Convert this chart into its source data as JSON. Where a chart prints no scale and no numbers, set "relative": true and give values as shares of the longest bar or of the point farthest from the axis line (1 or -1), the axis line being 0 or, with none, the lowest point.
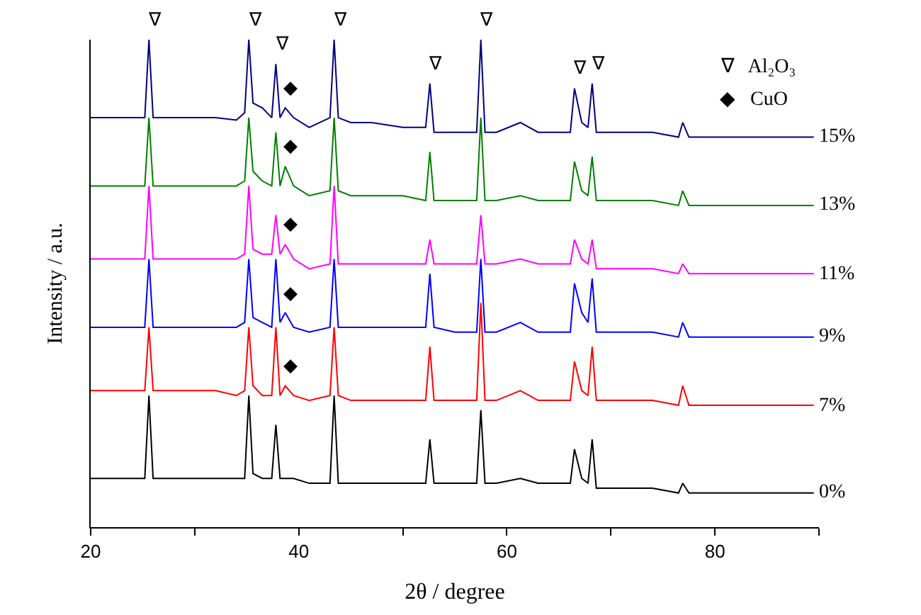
{
  "chart_data": {
    "type": "line",
    "relative": true,
    "xlabel": "2θ / degree",
    "ylabel": "Intensity / a.u.",
    "xlim": [
      20,
      90
    ],
    "xticks": [
      20,
      {
        "value": 30,
        "label": null
      },
      40,
      {
        "value": 50,
        "label": null
      },
      60,
      {
        "value": 70,
        "label": null
      },
      80,
      {
        "value": 90,
        "label": null
      }
    ],
    "x": [
      20,
      22,
      24,
      25.2,
      25.6,
      26.0,
      28,
      30,
      32,
      34,
      34.8,
      35.2,
      35.6,
      36.5,
      37.4,
      37.8,
      38.2,
      38.7,
      39.5,
      41,
      43.0,
      43.4,
      43.8,
      45,
      47,
      50,
      52.2,
      52.6,
      53.0,
      55,
      57.1,
      57.5,
      57.9,
      59,
      61.3,
      63,
      66.1,
      66.5,
      67.2,
      67.8,
      68.2,
      68.6,
      70,
      72,
      74,
      76.5,
      76.9,
      77.5,
      80,
      83,
      86,
      89.5
    ],
    "series": [
      {
        "name": "0%",
        "color": "#000000",
        "values": [
          0.1,
          0.1,
          0.1,
          0.1,
          0.27,
          0.1,
          0.1,
          0.1,
          0.1,
          0.1,
          0.1,
          0.27,
          0.11,
          0.1,
          0.1,
          0.21,
          0.1,
          0.1,
          0.1,
          0.09,
          0.09,
          0.27,
          0.09,
          0.09,
          0.09,
          0.09,
          0.09,
          0.18,
          0.09,
          0.09,
          0.09,
          0.24,
          0.09,
          0.09,
          0.1,
          0.09,
          0.09,
          0.16,
          0.1,
          0.09,
          0.18,
          0.08,
          0.08,
          0.08,
          0.08,
          0.07,
          0.09,
          0.07,
          0.07,
          0.07,
          0.07,
          0.07
        ]
      },
      {
        "name": "7%",
        "color": "#ff0000",
        "values": [
          0.28,
          0.28,
          0.28,
          0.28,
          0.41,
          0.28,
          0.28,
          0.28,
          0.28,
          0.27,
          0.28,
          0.41,
          0.29,
          0.27,
          0.27,
          0.41,
          0.27,
          0.29,
          0.27,
          0.26,
          0.27,
          0.41,
          0.27,
          0.26,
          0.26,
          0.26,
          0.26,
          0.37,
          0.26,
          0.26,
          0.26,
          0.46,
          0.26,
          0.26,
          0.28,
          0.26,
          0.26,
          0.34,
          0.28,
          0.27,
          0.37,
          0.26,
          0.26,
          0.26,
          0.26,
          0.25,
          0.29,
          0.25,
          0.25,
          0.25,
          0.25,
          0.25
        ]
      },
      {
        "name": "9%",
        "color": "#0000ff",
        "values": [
          0.41,
          0.41,
          0.41,
          0.41,
          0.55,
          0.41,
          0.41,
          0.41,
          0.41,
          0.41,
          0.42,
          0.55,
          0.43,
          0.42,
          0.41,
          0.55,
          0.42,
          0.44,
          0.41,
          0.4,
          0.41,
          0.55,
          0.41,
          0.41,
          0.41,
          0.41,
          0.41,
          0.52,
          0.41,
          0.4,
          0.4,
          0.55,
          0.4,
          0.4,
          0.42,
          0.4,
          0.4,
          0.5,
          0.44,
          0.42,
          0.51,
          0.4,
          0.4,
          0.4,
          0.4,
          0.39,
          0.42,
          0.39,
          0.39,
          0.39,
          0.39,
          0.39
        ]
      },
      {
        "name": "11%",
        "color": "#ff00ff",
        "values": [
          0.55,
          0.55,
          0.55,
          0.55,
          0.7,
          0.55,
          0.55,
          0.55,
          0.55,
          0.55,
          0.56,
          0.7,
          0.57,
          0.56,
          0.56,
          0.64,
          0.56,
          0.58,
          0.55,
          0.53,
          0.54,
          0.7,
          0.54,
          0.54,
          0.54,
          0.54,
          0.54,
          0.59,
          0.54,
          0.54,
          0.54,
          0.64,
          0.54,
          0.54,
          0.55,
          0.54,
          0.54,
          0.59,
          0.55,
          0.54,
          0.59,
          0.53,
          0.53,
          0.53,
          0.53,
          0.52,
          0.54,
          0.52,
          0.52,
          0.52,
          0.52,
          0.52
        ]
      },
      {
        "name": "13%",
        "color": "#008000",
        "values": [
          0.7,
          0.7,
          0.7,
          0.7,
          0.84,
          0.7,
          0.7,
          0.7,
          0.7,
          0.7,
          0.71,
          0.84,
          0.73,
          0.71,
          0.7,
          0.81,
          0.7,
          0.74,
          0.7,
          0.68,
          0.69,
          0.84,
          0.69,
          0.68,
          0.68,
          0.68,
          0.67,
          0.77,
          0.67,
          0.67,
          0.67,
          0.84,
          0.67,
          0.67,
          0.68,
          0.67,
          0.67,
          0.75,
          0.69,
          0.68,
          0.76,
          0.67,
          0.67,
          0.67,
          0.67,
          0.66,
          0.69,
          0.66,
          0.66,
          0.66,
          0.66,
          0.66
        ]
      },
      {
        "name": "15%",
        "color": "#000080",
        "values": [
          0.84,
          0.84,
          0.84,
          0.84,
          1.0,
          0.84,
          0.84,
          0.84,
          0.84,
          0.835,
          0.85,
          1.0,
          0.87,
          0.86,
          0.84,
          0.95,
          0.84,
          0.86,
          0.84,
          0.82,
          0.84,
          1.0,
          0.84,
          0.83,
          0.83,
          0.82,
          0.82,
          0.91,
          0.81,
          0.81,
          0.81,
          1.0,
          0.81,
          0.81,
          0.83,
          0.81,
          0.81,
          0.9,
          0.83,
          0.82,
          0.91,
          0.81,
          0.81,
          0.81,
          0.81,
          0.8,
          0.83,
          0.8,
          0.8,
          0.8,
          0.8,
          0.8
        ]
      }
    ],
    "annotations": [
      {
        "text": "∇",
        "x": 25.6,
        "y": 1.0
      },
      {
        "text": "∇",
        "x": 35.2,
        "y": 1.0
      },
      {
        "text": "∇",
        "x": 37.8,
        "y": 0.95
      },
      {
        "text": "∇",
        "x": 43.4,
        "y": 1.0
      },
      {
        "text": "∇",
        "x": 52.6,
        "y": 0.91
      },
      {
        "text": "∇",
        "x": 57.5,
        "y": 1.0
      },
      {
        "text": "∇",
        "x": 66.5,
        "y": 0.9
      },
      {
        "text": "∇",
        "x": 68.2,
        "y": 0.91
      },
      {
        "text": "◆",
        "x": 38.7,
        "y": 0.86
      },
      {
        "text": "◆",
        "x": 38.7,
        "y": 0.74
      },
      {
        "text": "◆",
        "x": 38.7,
        "y": 0.58
      },
      {
        "text": "◆",
        "x": 38.7,
        "y": 0.44
      },
      {
        "text": "◆",
        "x": 38.7,
        "y": 0.29
      },
      "∇   Al₂O₃",
      "◆   CuO"
    ],
    "legend": false
  }
}
